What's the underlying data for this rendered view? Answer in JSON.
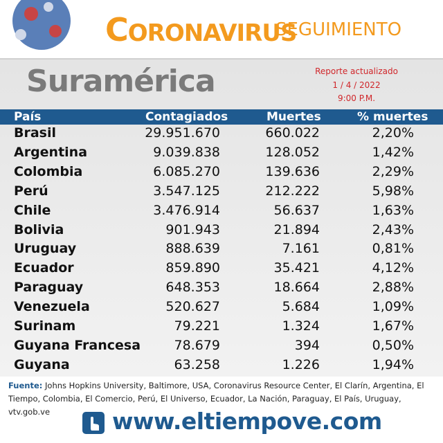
{
  "header": {
    "title": "CORONAVIRUS",
    "subtitle": "SEGUIMIENTO"
  },
  "region": "Suramérica",
  "report": [
    "Reporte actualizado",
    "1 / 4 / 2022",
    "9:00 P.M."
  ],
  "table": {
    "columns": [
      "País",
      "Contagiados",
      "Muertes",
      "% muertes"
    ],
    "rows": [
      [
        "Brasil",
        "29.951.670",
        "660.022",
        "2,20%"
      ],
      [
        "Argentina",
        "9.039.838",
        "128.052",
        "1,42%"
      ],
      [
        "Colombia",
        "6.085.270",
        "139.636",
        "2,29%"
      ],
      [
        "Perú",
        "3.547.125",
        "212.222",
        "5,98%"
      ],
      [
        "Chile",
        "3.476.914",
        "56.637",
        "1,63%"
      ],
      [
        "Bolivia",
        "901.943",
        "21.894",
        "2,43%"
      ],
      [
        "Uruguay",
        "888.639",
        "7.161",
        "0,81%"
      ],
      [
        "Ecuador",
        "859.890",
        "35.421",
        "4,12%"
      ],
      [
        "Paraguay",
        "648.353",
        "18.664",
        "2,88%"
      ],
      [
        "Venezuela",
        "520.627",
        "5.684",
        "1,09%"
      ],
      [
        "Surinam",
        "79.221",
        "1.324",
        "1,67%"
      ],
      [
        "Guyana Francesa",
        "78.679",
        "394",
        "0,50%"
      ],
      [
        "Guyana",
        "63.258",
        "1.226",
        "1,94%"
      ]
    ]
  },
  "footer": {
    "source_label": "Fuente:",
    "source_text": "Johns Hopkins University, Baltimore, USA, Coronavirus Resource Center,  El Clarín, Argentina, El Tiempo, Colombia, El Comercio, Perú, El Universo, Ecuador, La Nación, Paraguay, El País, Uruguay, vtv.gob.ve",
    "website": "www.eltiempove.com"
  }
}
